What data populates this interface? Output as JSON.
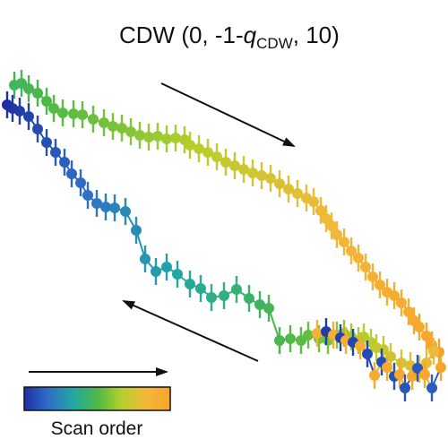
{
  "chart_data": {
    "type": "scatter",
    "title": {
      "prefix": "CDW (0, -1-",
      "q": "q",
      "subscript": "CDW",
      "suffix": ", 10)"
    },
    "xlabel": "",
    "ylabel": "",
    "grid": false,
    "colorbar": {
      "label": "Scan order",
      "colors": [
        "#1f2fa3",
        "#2f6fc8",
        "#22a7a4",
        "#4cb848",
        "#b6cf2b",
        "#f2b83a",
        "#f7a52a"
      ],
      "placement": "bottom-left"
    },
    "arrows": [
      {
        "direction": "down-right",
        "meaning": "forward sweep"
      },
      {
        "direction": "up-left",
        "meaning": "return sweep"
      },
      {
        "direction": "right",
        "meaning": "scan order"
      }
    ],
    "series": [
      {
        "sweep": "forward",
        "points": [
          [
            16,
            95
          ],
          [
            24,
            93
          ],
          [
            32,
            99
          ],
          [
            42,
            104
          ],
          [
            52,
            113
          ],
          [
            60,
            121
          ],
          [
            70,
            126
          ],
          [
            82,
            127
          ],
          [
            92,
            128
          ],
          [
            104,
            133
          ],
          [
            116,
            137
          ],
          [
            126,
            141
          ],
          [
            136,
            143
          ],
          [
            146,
            147
          ],
          [
            156,
            151
          ],
          [
            166,
            153
          ],
          [
            176,
            152
          ],
          [
            186,
            155
          ],
          [
            196,
            154
          ],
          [
            206,
            156
          ],
          [
            212,
            162
          ],
          [
            222,
            166
          ],
          [
            232,
            170
          ],
          [
            242,
            175
          ],
          [
            252,
            181
          ],
          [
            262,
            185
          ],
          [
            272,
            189
          ],
          [
            282,
            193
          ],
          [
            292,
            196
          ],
          [
            302,
            199
          ],
          [
            312,
            205
          ],
          [
            322,
            211
          ],
          [
            332,
            216
          ],
          [
            342,
            221
          ],
          [
            350,
            225
          ],
          [
            358,
            235
          ],
          [
            364,
            244
          ],
          [
            370,
            252
          ],
          [
            376,
            262
          ],
          [
            384,
            270
          ],
          [
            392,
            280
          ],
          [
            400,
            288
          ],
          [
            408,
            298
          ],
          [
            416,
            309
          ],
          [
            424,
            318
          ],
          [
            432,
            326
          ],
          [
            440,
            330
          ],
          [
            448,
            338
          ],
          [
            456,
            348
          ],
          [
            462,
            358
          ],
          [
            468,
            365
          ],
          [
            476,
            375
          ],
          [
            482,
            385
          ],
          [
            490,
            393
          ]
        ]
      },
      {
        "sweep": "return",
        "points": [
          [
            484,
            392
          ],
          [
            476,
            405
          ],
          [
            468,
            412
          ],
          [
            458,
            408
          ],
          [
            448,
            405
          ],
          [
            436,
            398
          ],
          [
            428,
            390
          ],
          [
            420,
            388
          ],
          [
            414,
            382
          ],
          [
            406,
            376
          ],
          [
            400,
            380
          ],
          [
            392,
            376
          ],
          [
            384,
            372
          ],
          [
            376,
            374
          ],
          [
            366,
            380
          ],
          [
            356,
            378
          ],
          [
            344,
            374
          ],
          [
            336,
            380
          ],
          [
            324,
            378
          ],
          [
            312,
            380
          ],
          [
            300,
            344
          ],
          [
            290,
            340
          ],
          [
            278,
            333
          ],
          [
            264,
            323
          ],
          [
            250,
            330
          ],
          [
            236,
            332
          ],
          [
            224,
            322
          ],
          [
            212,
            317
          ],
          [
            198,
            306
          ],
          [
            186,
            298
          ],
          [
            174,
            303
          ],
          [
            162,
            289
          ],
          [
            152,
            257
          ],
          [
            140,
            236
          ],
          [
            128,
            232
          ],
          [
            118,
            231
          ],
          [
            108,
            227
          ],
          [
            98,
            218
          ],
          [
            90,
            204
          ],
          [
            80,
            194
          ],
          [
            72,
            181
          ],
          [
            62,
            170
          ],
          [
            52,
            159
          ],
          [
            42,
            144
          ],
          [
            32,
            130
          ],
          [
            22,
            124
          ],
          [
            14,
            121
          ],
          [
            8,
            117
          ]
        ]
      },
      {
        "sweep": "final",
        "points": [
          [
            354,
            372
          ],
          [
            364,
            370
          ],
          [
            372,
            374
          ],
          [
            380,
            377
          ],
          [
            386,
            380
          ],
          [
            394,
            382
          ],
          [
            402,
            386
          ],
          [
            410,
            395
          ],
          [
            418,
            419
          ],
          [
            426,
            404
          ],
          [
            432,
            410
          ],
          [
            440,
            420
          ],
          [
            446,
            418
          ],
          [
            452,
            433
          ],
          [
            460,
            420
          ],
          [
            466,
            411
          ],
          [
            474,
            418
          ],
          [
            482,
            433
          ],
          [
            492,
            410
          ]
        ]
      }
    ]
  }
}
